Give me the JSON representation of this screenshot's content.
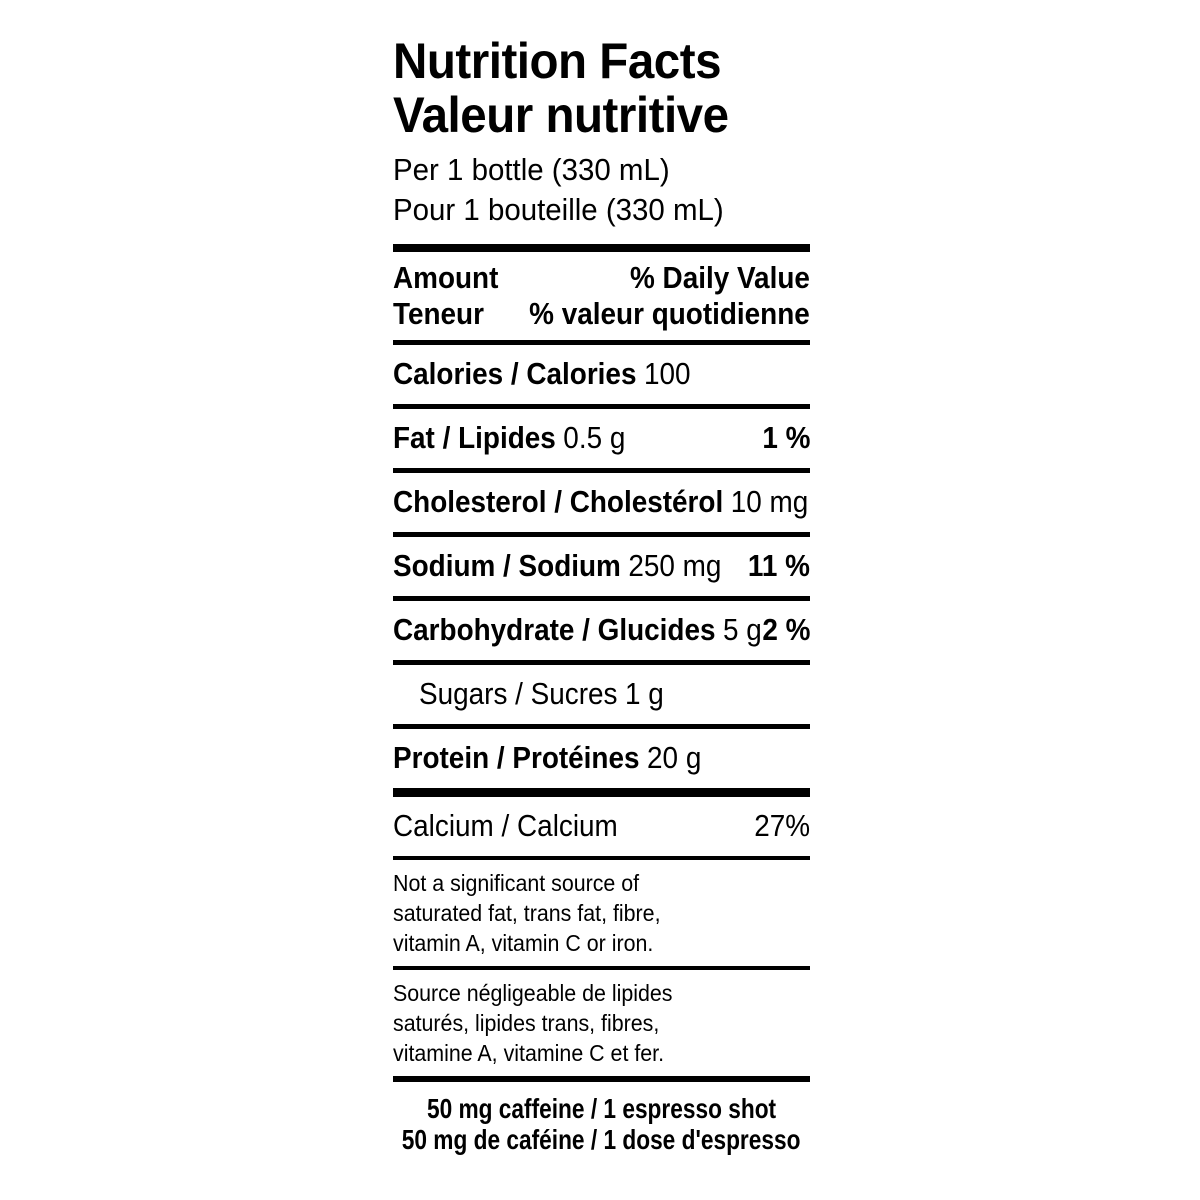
{
  "nutrition_label": {
    "title_en": "Nutrition Facts",
    "title_fr": "Valeur nutritive",
    "serving": {
      "en": "Per 1 bottle (330 mL)",
      "fr": "Pour 1 bouteille (330 mL)"
    },
    "column_header": {
      "amount_en": "Amount",
      "amount_fr": "Teneur",
      "daily_value_en": "% Daily Value",
      "daily_value_fr": "% valeur quotidienne"
    },
    "rows": [
      {
        "name": "Calories / Calories",
        "amount": "100",
        "dv": ""
      },
      {
        "name": "Fat / Lipides",
        "amount": "0.5 g",
        "dv": "1 %"
      },
      {
        "name": "Cholesterol / Cholestérol",
        "amount": "10 mg",
        "dv": ""
      },
      {
        "name": "Sodium / Sodium",
        "amount": "250 mg",
        "dv": "11 %"
      },
      {
        "name": "Carbohydrate / Glucides",
        "amount": "5 g",
        "dv": "2 %"
      },
      {
        "name": "Sugars / Sucres",
        "amount": "1 g",
        "dv": ""
      },
      {
        "name": "Protein / Protéines",
        "amount": "20 g",
        "dv": ""
      },
      {
        "name": "Calcium / Calcium",
        "amount": "",
        "dv": "27%"
      }
    ],
    "footnote_en": {
      "line1": "Not a significant source of",
      "line2": "saturated fat, trans fat, fibre,",
      "line3": "vitamin A, vitamin C or iron."
    },
    "footnote_fr": {
      "line1": "Source négligeable de lipides",
      "line2": "saturés, lipides trans, fibres,",
      "line3": "vitamine A, vitamine C et fer."
    },
    "caffeine": {
      "en": "50 mg caffeine / 1 espresso shot",
      "fr": "50 mg de caféine / 1 dose d'espresso"
    },
    "colors": {
      "text": "#000000",
      "background": "#ffffff"
    }
  }
}
